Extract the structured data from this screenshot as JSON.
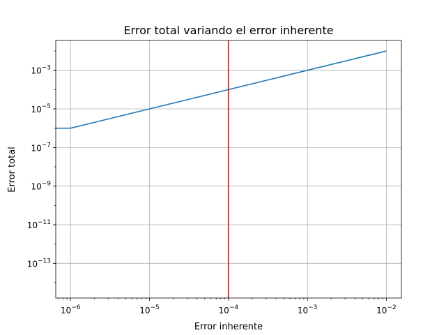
{
  "chart_data": {
    "type": "line",
    "title": "Error total variando el error inherente",
    "xlabel": "Error inherente",
    "ylabel": "Error total",
    "xscale": "log",
    "yscale": "log",
    "xlim": [
      6.5e-07,
      0.0155
    ],
    "ylim": [
      1.6e-15,
      0.035
    ],
    "grid": true,
    "series": [
      {
        "color": "#1f77b4",
        "x": [
          6.5e-07,
          1e-06,
          1e-05,
          0.0001,
          0.001,
          0.01
        ],
        "y": [
          1e-06,
          1e-06,
          1e-05,
          0.0001,
          0.001,
          0.01
        ]
      }
    ],
    "vline": {
      "x": 0.0001,
      "color": "#d62728"
    },
    "xticks": [
      {
        "value": 1e-06,
        "base": "10",
        "exp": "−6"
      },
      {
        "value": 1e-05,
        "base": "10",
        "exp": "−5"
      },
      {
        "value": 0.0001,
        "base": "10",
        "exp": "−4"
      },
      {
        "value": 0.001,
        "base": "10",
        "exp": "−3"
      },
      {
        "value": 0.01,
        "base": "10",
        "exp": "−2"
      }
    ],
    "yticks": [
      {
        "value": 1e-13,
        "base": "10",
        "exp": "−13"
      },
      {
        "value": 1e-11,
        "base": "10",
        "exp": "−11"
      },
      {
        "value": 1e-09,
        "base": "10",
        "exp": "−9"
      },
      {
        "value": 1e-07,
        "base": "10",
        "exp": "−7"
      },
      {
        "value": 1e-05,
        "base": "10",
        "exp": "−5"
      },
      {
        "value": 0.001,
        "base": "10",
        "exp": "−3"
      }
    ]
  }
}
